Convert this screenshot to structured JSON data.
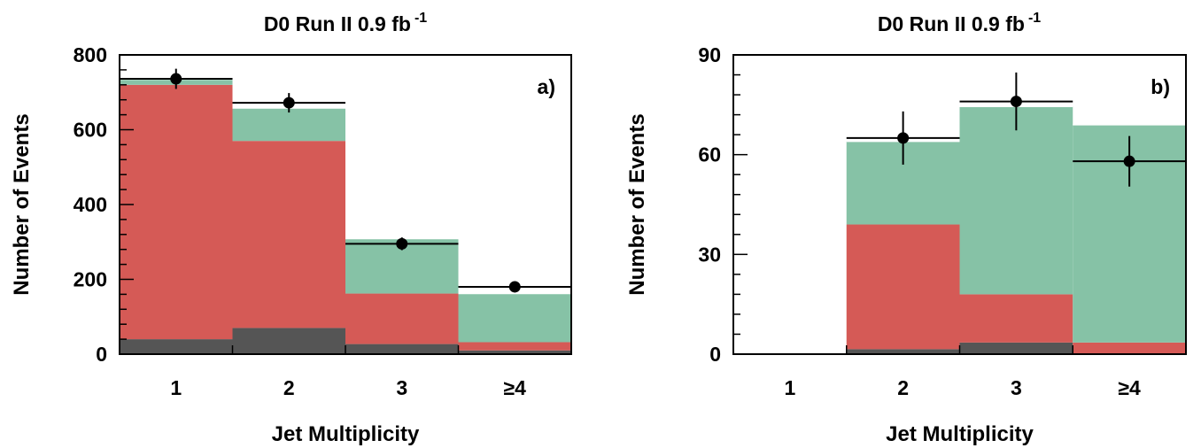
{
  "chart_data": [
    {
      "type": "bar",
      "stacked": true,
      "title": "D0 Run II 0.9 fb",
      "title_superscript": "-1",
      "panel_label": "a)",
      "xlabel": "Jet Multiplicity",
      "ylabel": "Number of Events",
      "categories": [
        "1",
        "2",
        "3",
        "≥4"
      ],
      "ylim": [
        0,
        800
      ],
      "yticks": [
        "0",
        "200",
        "400",
        "600",
        "800"
      ],
      "series": [
        {
          "color": "#555555",
          "values": [
            40,
            70,
            27,
            10
          ]
        },
        {
          "color": "#d55a56",
          "values": [
            680,
            500,
            135,
            22
          ]
        },
        {
          "color": "#86c2a6",
          "values": [
            15,
            88,
            147,
            130
          ]
        }
      ],
      "data_points": {
        "values": [
          736,
          672,
          295,
          180
        ],
        "errors": [
          27,
          26,
          17,
          13
        ]
      }
    },
    {
      "type": "bar",
      "stacked": true,
      "title": "D0 Run II 0.9 fb",
      "title_superscript": "-1",
      "panel_label": "b)",
      "xlabel": "Jet Multiplicity",
      "ylabel": "Number of Events",
      "categories": [
        "1",
        "2",
        "3",
        "≥4"
      ],
      "ylim": [
        0,
        90
      ],
      "yticks": [
        "0",
        "30",
        "60",
        "90"
      ],
      "series": [
        {
          "color": "#555555",
          "values": [
            0,
            1.5,
            3.5,
            0
          ]
        },
        {
          "color": "#d55a56",
          "values": [
            0,
            37.5,
            14.5,
            3.5
          ]
        },
        {
          "color": "#86c2a6",
          "values": [
            0,
            25,
            56.5,
            65.5
          ]
        }
      ],
      "data_points": {
        "values": [
          null,
          65,
          76,
          58
        ],
        "errors": [
          null,
          8,
          8.7,
          7.6
        ]
      }
    }
  ]
}
